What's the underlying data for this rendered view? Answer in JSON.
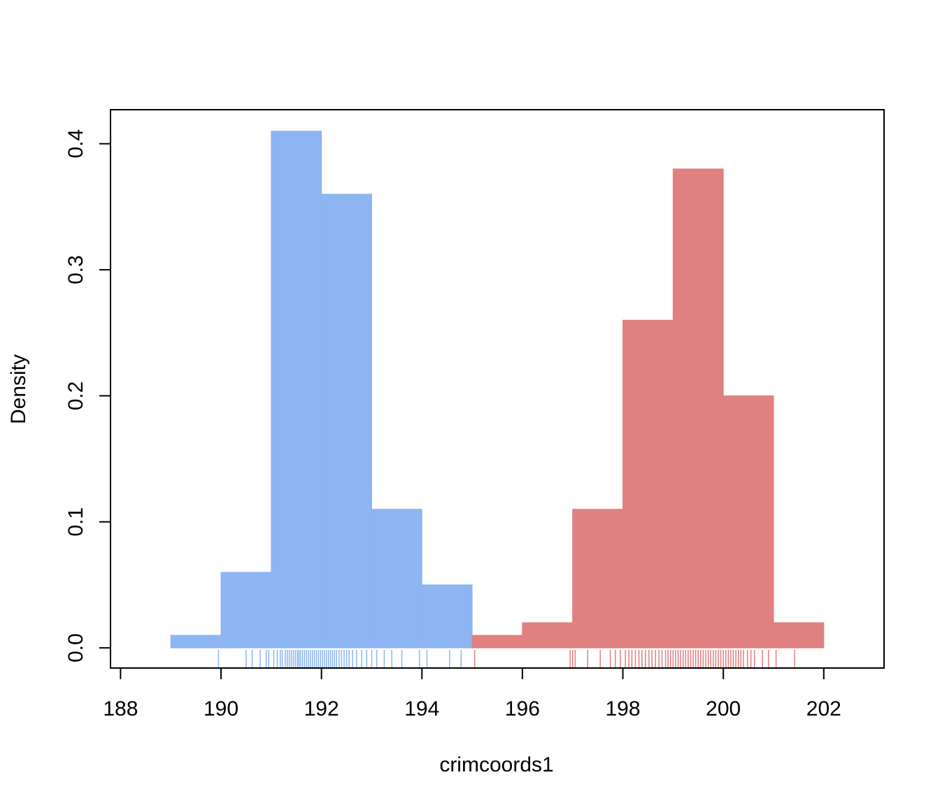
{
  "chart_data": {
    "type": "bar",
    "title": "",
    "xlabel": "crimcoords1",
    "ylabel": "Density",
    "xlim": [
      187.8,
      203.2
    ],
    "ylim": [
      -0.016,
      0.427
    ],
    "x_ticks": [
      188,
      190,
      192,
      194,
      196,
      198,
      200,
      202
    ],
    "x_tick_labels": [
      "188",
      "190",
      "192",
      "194",
      "196",
      "198",
      "200",
      "202"
    ],
    "y_ticks": [
      0.0,
      0.1,
      0.2,
      0.3,
      0.4
    ],
    "y_tick_labels": [
      "0.0",
      "0.1",
      "0.2",
      "0.3",
      "0.4"
    ],
    "grid": false,
    "series": [
      {
        "color": "#8db5f2",
        "bins": [
          {
            "x0": 189,
            "x1": 190,
            "value": 0.01
          },
          {
            "x0": 190,
            "x1": 191,
            "value": 0.06
          },
          {
            "x0": 191,
            "x1": 192,
            "value": 0.41
          },
          {
            "x0": 192,
            "x1": 193,
            "value": 0.36
          },
          {
            "x0": 193,
            "x1": 194,
            "value": 0.11
          },
          {
            "x0": 194,
            "x1": 195,
            "value": 0.05
          }
        ],
        "rug": [
          189.95,
          190.5,
          190.62,
          190.78,
          190.9,
          190.95,
          191.05,
          191.12,
          191.18,
          191.22,
          191.28,
          191.32,
          191.36,
          191.4,
          191.44,
          191.48,
          191.52,
          191.55,
          191.58,
          191.62,
          191.66,
          191.7,
          191.74,
          191.78,
          191.82,
          191.86,
          191.9,
          191.94,
          191.98,
          192.02,
          192.06,
          192.1,
          192.14,
          192.18,
          192.22,
          192.26,
          192.3,
          192.35,
          192.4,
          192.45,
          192.5,
          192.55,
          192.62,
          192.7,
          192.8,
          192.9,
          193.0,
          193.1,
          193.25,
          193.4,
          193.6,
          193.95,
          194.1,
          194.55,
          194.78
        ]
      },
      {
        "color": "#e08080",
        "bins": [
          {
            "x0": 195,
            "x1": 196,
            "value": 0.01
          },
          {
            "x0": 196,
            "x1": 197,
            "value": 0.02
          },
          {
            "x0": 197,
            "x1": 198,
            "value": 0.11
          },
          {
            "x0": 198,
            "x1": 199,
            "value": 0.26
          },
          {
            "x0": 199,
            "x1": 200,
            "value": 0.38
          },
          {
            "x0": 200,
            "x1": 201,
            "value": 0.2
          },
          {
            "x0": 201,
            "x1": 202,
            "value": 0.02
          }
        ],
        "rug": [
          195.05,
          196.95,
          197.0,
          197.05,
          197.3,
          197.55,
          197.75,
          197.85,
          197.95,
          198.05,
          198.12,
          198.18,
          198.25,
          198.32,
          198.38,
          198.45,
          198.52,
          198.58,
          198.65,
          198.72,
          198.78,
          198.85,
          198.9,
          198.95,
          199.0,
          199.05,
          199.1,
          199.15,
          199.2,
          199.25,
          199.3,
          199.35,
          199.4,
          199.45,
          199.5,
          199.55,
          199.6,
          199.65,
          199.7,
          199.75,
          199.8,
          199.85,
          199.9,
          199.95,
          200.0,
          200.05,
          200.1,
          200.15,
          200.2,
          200.25,
          200.3,
          200.35,
          200.4,
          200.48,
          200.55,
          200.62,
          200.78,
          200.9,
          201.05,
          201.42
        ]
      }
    ]
  }
}
